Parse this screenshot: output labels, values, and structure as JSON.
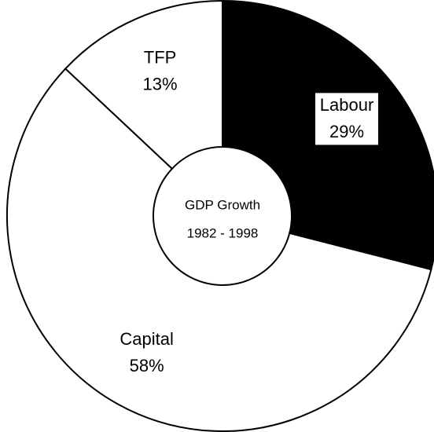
{
  "chart_data": {
    "type": "donut",
    "center_text": [
      "GDP Growth",
      "1982 - 1998"
    ],
    "categories": [
      "Labour",
      "Capital",
      "TFP"
    ],
    "values": [
      29,
      58,
      13
    ],
    "value_labels": [
      "29%",
      "58%",
      "13%"
    ],
    "colors": [
      "#000000",
      "#ffffff",
      "#ffffff"
    ]
  }
}
